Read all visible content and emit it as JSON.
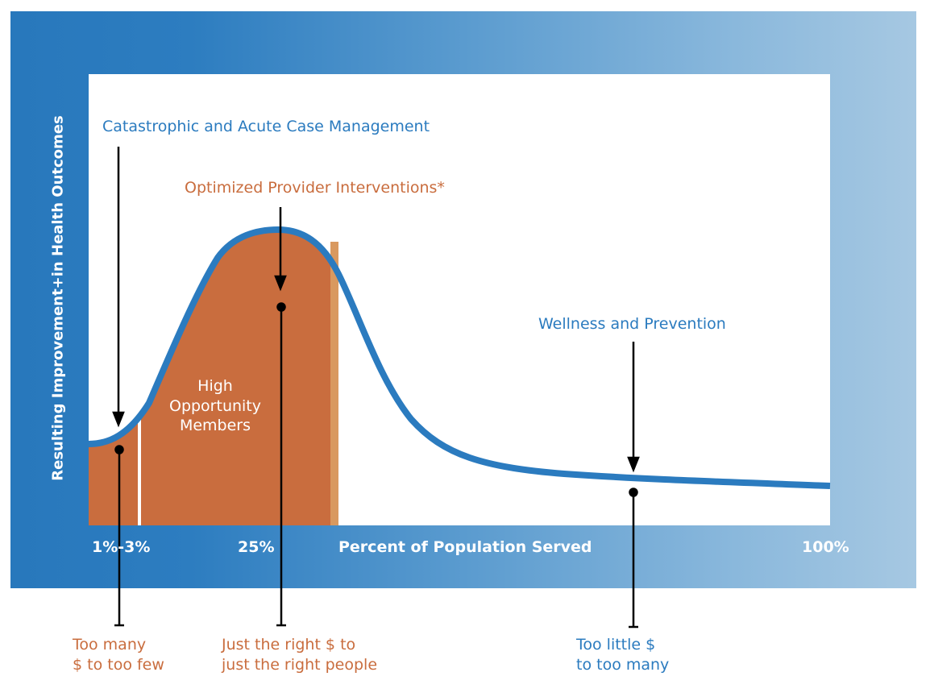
{
  "y_axis_label": "Resulting Improvement+in Health Outcomes",
  "x_axis": {
    "label": "Percent of Population Served",
    "ticks": [
      "1%-3%",
      "25%",
      "100%"
    ]
  },
  "annotations": {
    "catastrophic": "Catastrophic and Acute Case Management",
    "optimized": "Optimized Provider Interventions*",
    "wellness": "Wellness and Prevention",
    "high_opportunity": [
      "High",
      "Opportunity",
      "Members"
    ]
  },
  "bottom_labels": {
    "too_many": [
      "Too many",
      "$ to too few"
    ],
    "just_right": [
      "Just the right $ to",
      "just the right people"
    ],
    "too_little": [
      "Too little $",
      "to too many"
    ]
  },
  "colors": {
    "blue": "#2b7bbf",
    "orange": "#c96d3e",
    "light_orange": "#d9995f"
  }
}
